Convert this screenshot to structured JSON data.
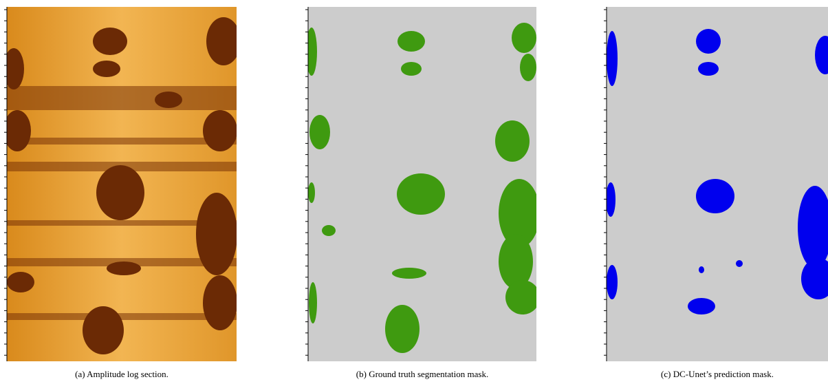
{
  "figure": {
    "panels": [
      {
        "caption": "(a) Amplitude log section."
      },
      {
        "caption": "(b) Ground truth segmentation mask."
      },
      {
        "caption": "(c) DC-Unet’s prediction mask."
      }
    ]
  }
}
